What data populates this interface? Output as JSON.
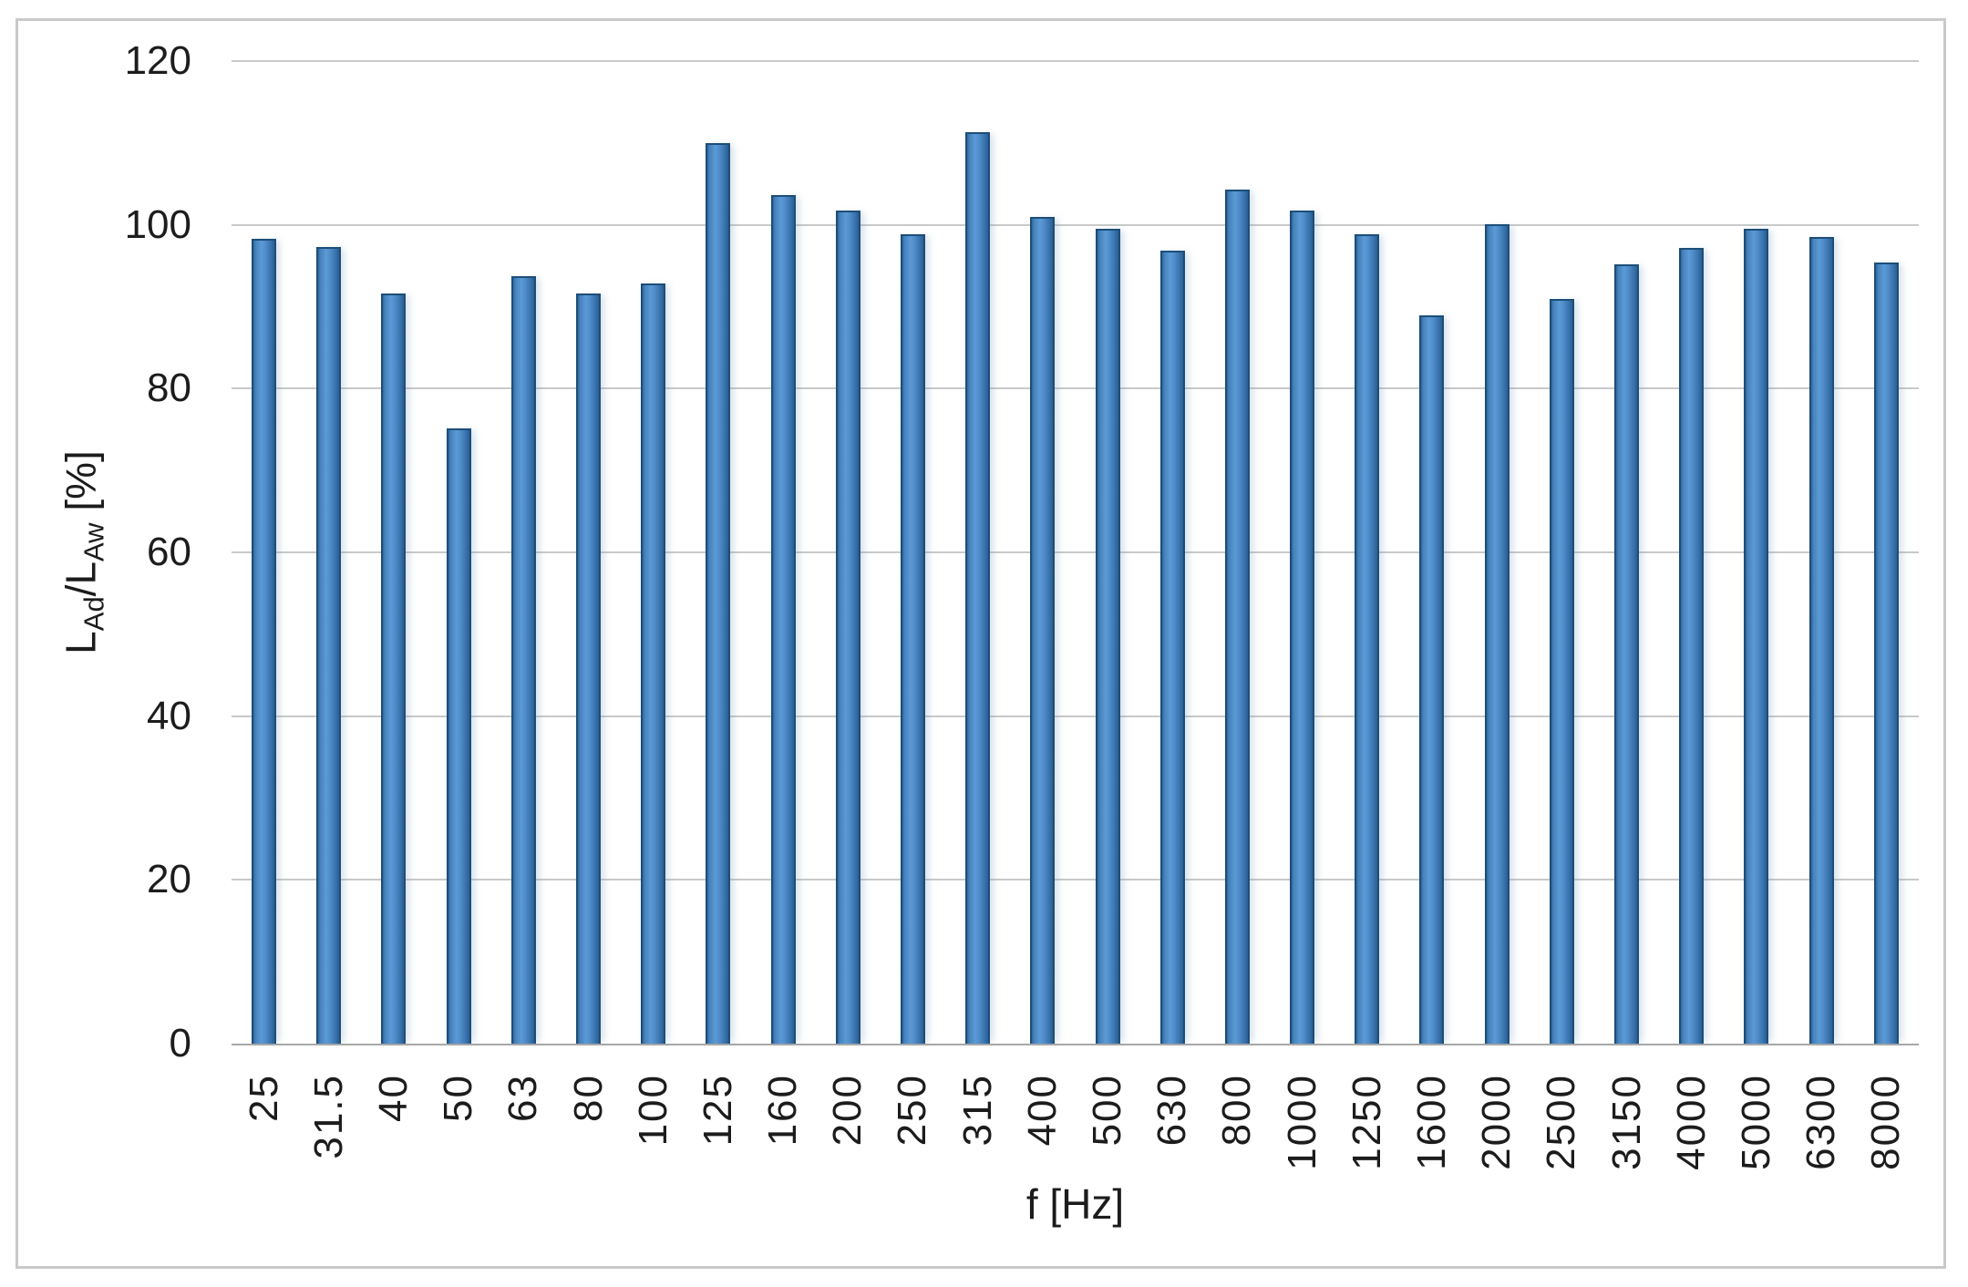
{
  "chart_data": {
    "type": "bar",
    "title": "",
    "categories": [
      "25",
      "31.5",
      "40",
      "50",
      "63",
      "80",
      "100",
      "125",
      "160",
      "200",
      "250",
      "315",
      "400",
      "500",
      "630",
      "800",
      "1000",
      "1250",
      "1600",
      "2000",
      "2500",
      "3150",
      "4000",
      "5000",
      "6300",
      "8000"
    ],
    "values": [
      98.1,
      97.1,
      91.4,
      74.9,
      93.5,
      91.4,
      92.6,
      109.8,
      103.4,
      101.5,
      98.6,
      111.1,
      100.7,
      99.3,
      96.6,
      104.1,
      101.5,
      98.6,
      88.7,
      99.8,
      90.7,
      95.0,
      97.0,
      99.3,
      98.3,
      95.2
    ],
    "xlabel": "f [Hz]",
    "ylabel": "L_Ad/L_Aw [%]",
    "ylabel_rich": [
      {
        "t": "L",
        "sub": false
      },
      {
        "t": "Ad",
        "sub": true
      },
      {
        "t": "/L",
        "sub": false
      },
      {
        "t": "Aw",
        "sub": true
      },
      {
        "t": " [%]",
        "sub": false
      }
    ],
    "ylim": [
      0,
      120
    ],
    "yticks": [
      0,
      20,
      40,
      60,
      80,
      100,
      120
    ],
    "grid": "horizontal",
    "legend": "none",
    "colors": {
      "bar_center": "#5b9ad6",
      "bar_edge_gradient": "#2a5f94",
      "bar_border": "#1d4e79",
      "gridline": "#c9c9c9",
      "axis_line": "#a8a8a8",
      "frame_border": "#c9c9c9",
      "text": "#1c1c1c",
      "background": "#ffffff"
    }
  }
}
